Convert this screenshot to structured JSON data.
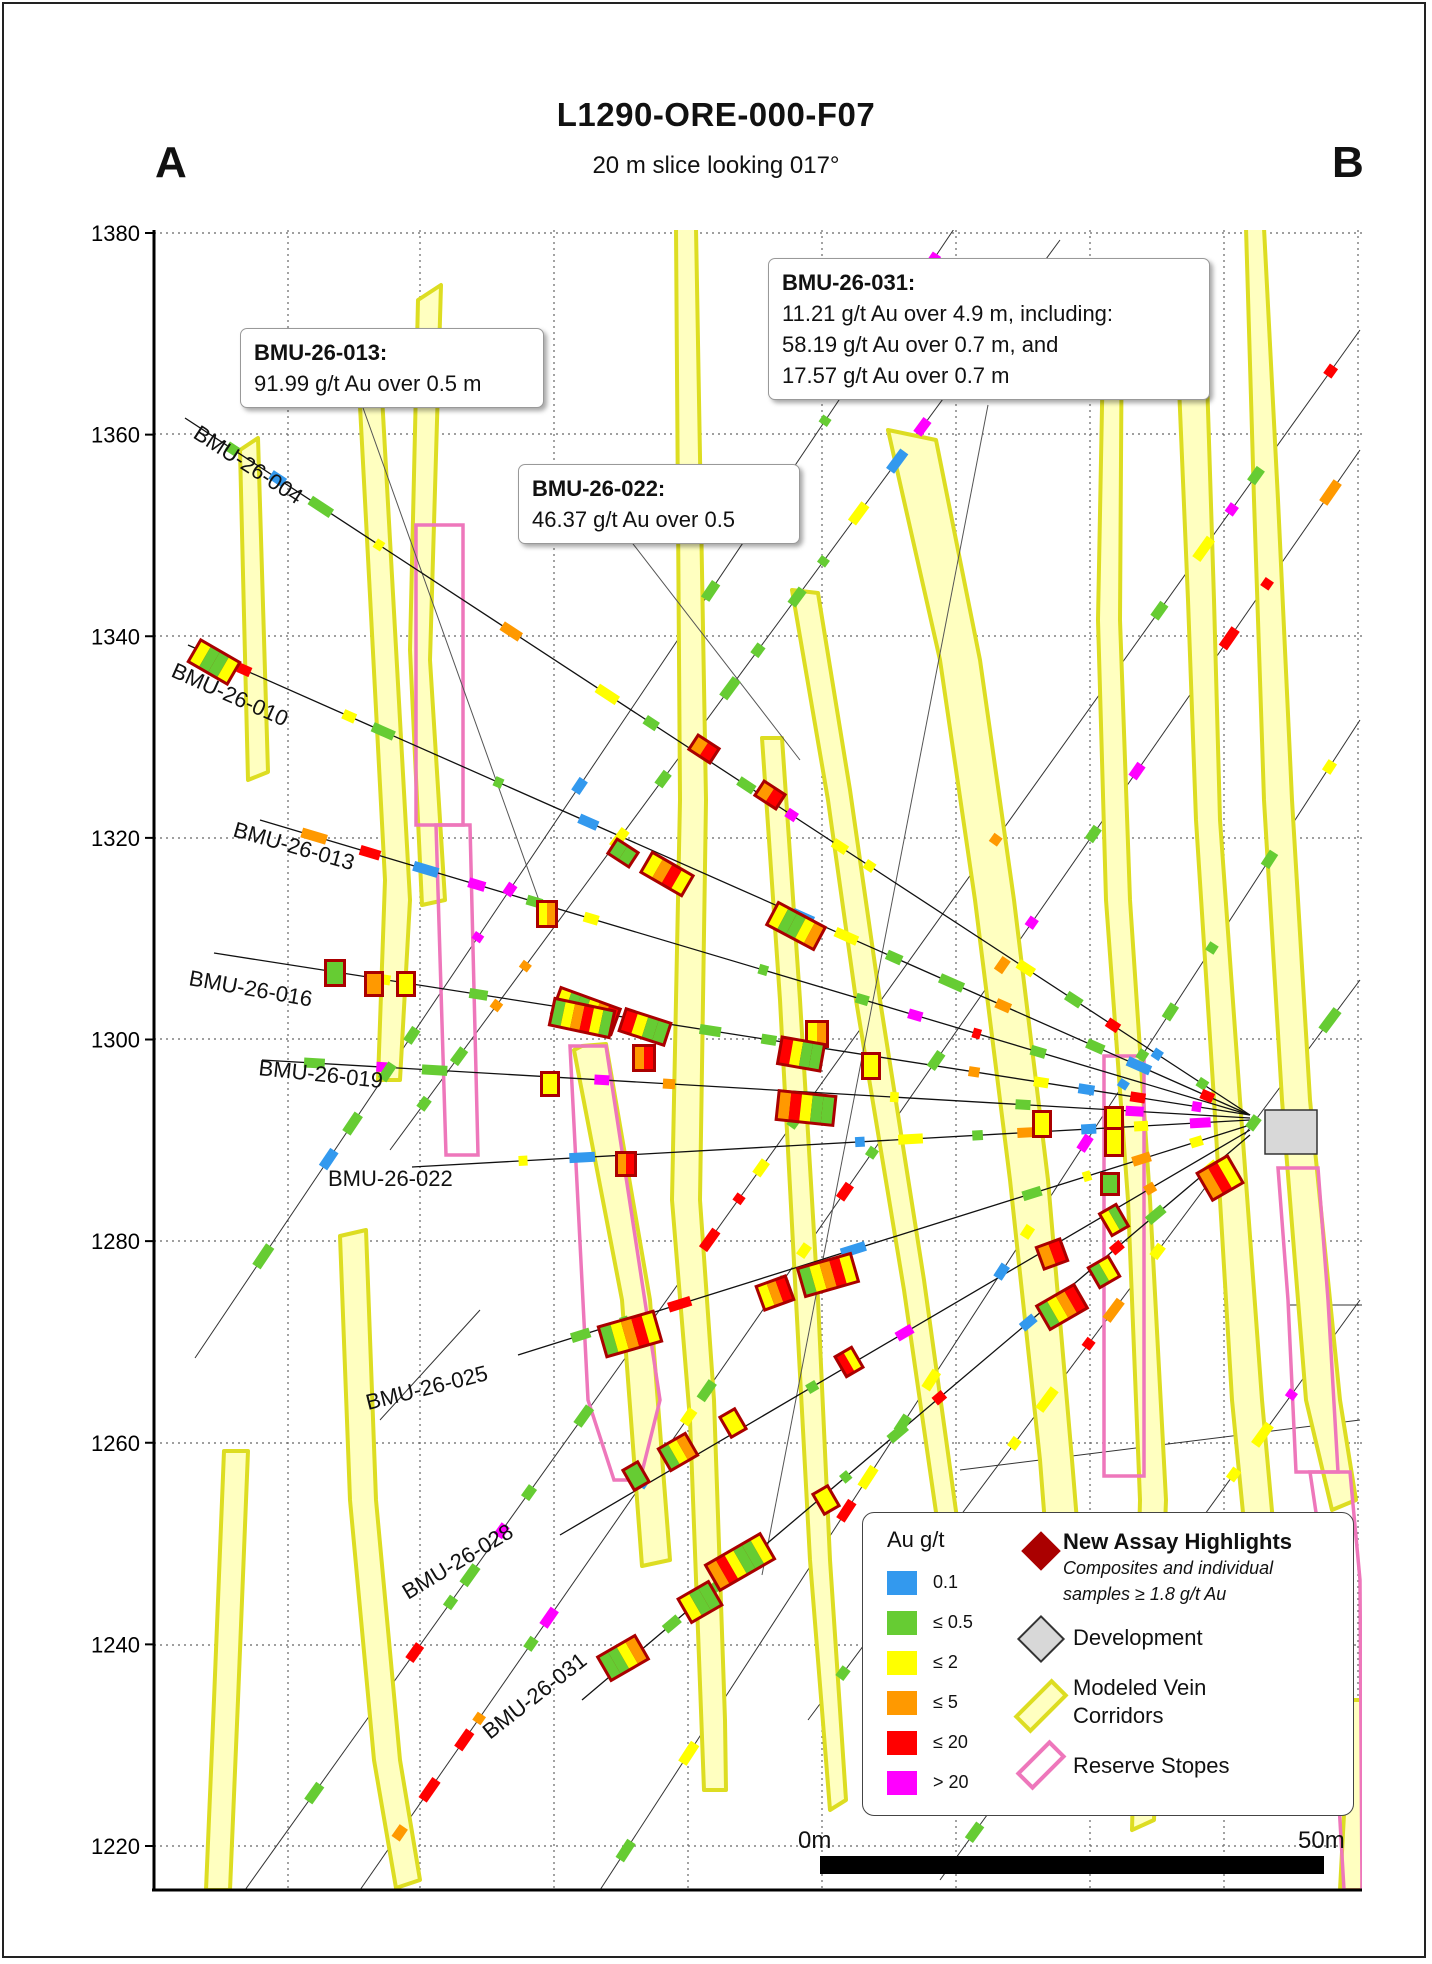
{
  "title": "L1290-ORE-000-F07",
  "subtitle": "20 m slice looking 017°",
  "section_ends": {
    "left": "A",
    "right": "B"
  },
  "y_axis": {
    "ticks": [
      "1380",
      "1360",
      "1340",
      "1320",
      "1300",
      "1280",
      "1260",
      "1240",
      "1220"
    ],
    "min": 1216,
    "max": 1380,
    "grid": true
  },
  "drill_holes": [
    "BMU-26-004",
    "BMU-26-010",
    "BMU-26-013",
    "BMU-26-016",
    "BMU-26-019",
    "BMU-26-022",
    "BMU-26-025",
    "BMU-26-028",
    "BMU-26-031"
  ],
  "callouts": [
    {
      "hole": "BMU-26-013:",
      "lines": [
        "91.99 g/t Au over 0.5 m"
      ]
    },
    {
      "hole": "BMU-26-022:",
      "lines": [
        "46.37 g/t Au over 0.5"
      ]
    },
    {
      "hole": "BMU-26-031:",
      "lines": [
        "11.21 g/t Au over 4.9 m, including:",
        "58.19 g/t Au over 0.7 m, and",
        "17.57 g/t Au over 0.7 m"
      ]
    }
  ],
  "legend": {
    "title": "Au g/t",
    "grades": [
      {
        "label": "0.1",
        "color": "#3399ee"
      },
      {
        "label": "≤ 0.5",
        "color": "#66cc33"
      },
      {
        "label": "≤ 2",
        "color": "#ffff00"
      },
      {
        "label": "≤ 5",
        "color": "#ff9900"
      },
      {
        "label": "≤ 20",
        "color": "#ff0000"
      },
      {
        "label": "> 20",
        "color": "#ff00ff"
      }
    ],
    "highlights_label": "New Assay Highlights",
    "highlights_sub1": "Composites and individual",
    "highlights_sub2": "samples ≥ 1.8 g/t Au",
    "development_label": "Development",
    "vein_label_1": "Modeled Vein",
    "vein_label_2": "Corridors",
    "stopes_label": "Reserve Stopes"
  },
  "colors": {
    "highlight": "#aa0000",
    "vein_fill": "#ffffc0",
    "vein_stroke": "#dddd22",
    "stope": "#ee77bb",
    "development": "#d8d8d8"
  },
  "scale_bar": {
    "start": "0m",
    "end": "50m"
  }
}
